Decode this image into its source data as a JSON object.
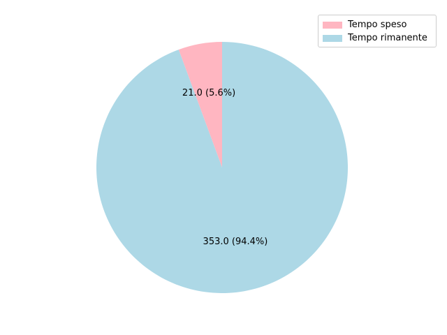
{
  "chart_data": {
    "type": "pie",
    "categories": [
      "Tempo speso",
      "Tempo rimanente"
    ],
    "values": [
      21.0,
      353.0
    ],
    "data_labels": [
      "21.0 (5.6%)",
      "353.0 (94.4%)"
    ],
    "colors": [
      "#ffb6c1",
      "#add8e6"
    ],
    "start_angle_deg": 90,
    "direction": "counterclockwise",
    "title": "",
    "legend_placement": "top-right"
  }
}
